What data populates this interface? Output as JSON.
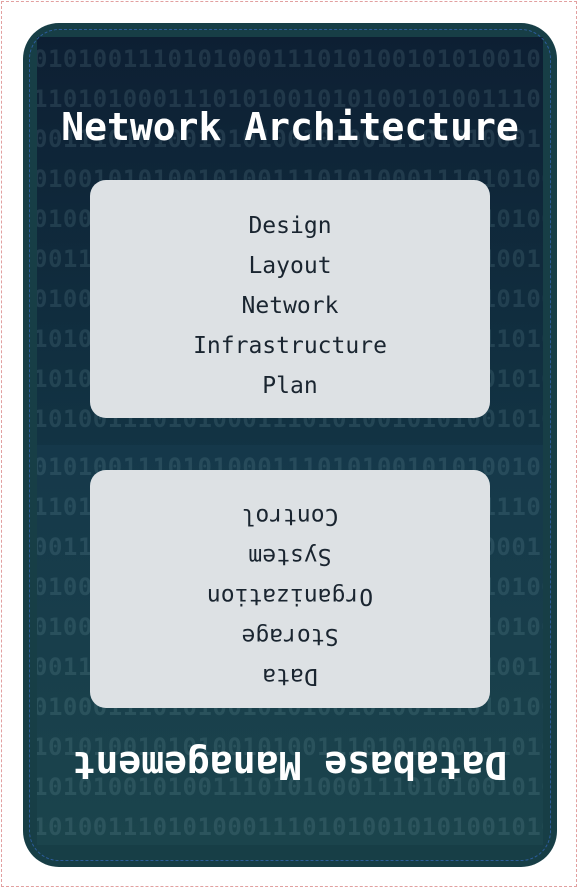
{
  "top_section": {
    "heading": "Network Architecture",
    "words": [
      "Design",
      "Layout",
      "Network",
      "Infrastructure",
      "Plan"
    ]
  },
  "bottom_section": {
    "heading": "Database Management",
    "words": [
      "Data",
      "Storage",
      "Organization",
      "System",
      "Control"
    ]
  },
  "background_pattern": "0101001110101000111010100101010",
  "colors": {
    "card": "#173e46",
    "panel": "#dde1e4",
    "heading_text": "#ffffff",
    "panel_text": "#1a2530"
  }
}
